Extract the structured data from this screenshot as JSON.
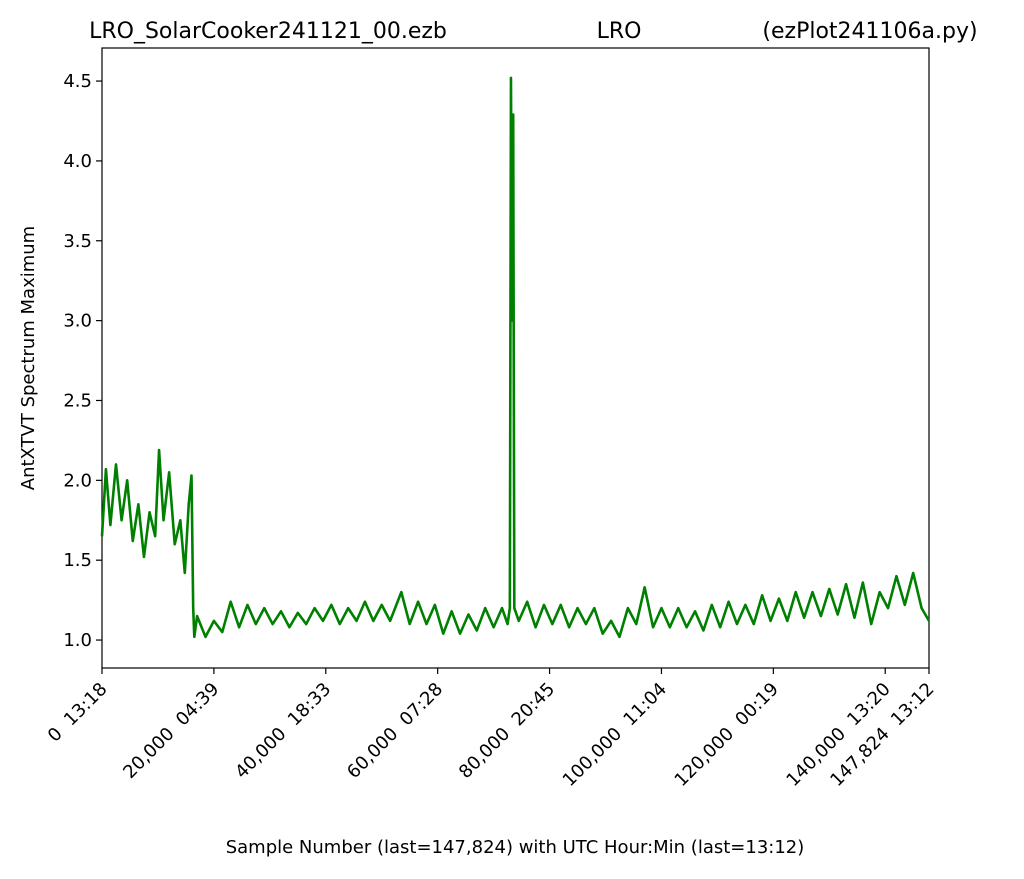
{
  "chart_data": {
    "type": "line",
    "title_left": "LRO_SolarCooker241121_00.ezb",
    "title_center": "LRO",
    "title_right": "(ezPlot241106a.py)",
    "xlabel": "Sample Number (last=147,824) with UTC Hour:Min (last=13:12)",
    "ylabel": "AntXTVT Spectrum Maximum",
    "xlim": [
      0,
      147824
    ],
    "ylim": [
      0.825,
      4.707
    ],
    "xticks": [
      {
        "value": 0,
        "label": "0  13:18"
      },
      {
        "value": 20000,
        "label": "20,000  04:39"
      },
      {
        "value": 40000,
        "label": "40,000  18:33"
      },
      {
        "value": 60000,
        "label": "60,000  07:28"
      },
      {
        "value": 80000,
        "label": "80,000  20:45"
      },
      {
        "value": 100000,
        "label": "100,000  11:04"
      },
      {
        "value": 120000,
        "label": "120,000  00:19"
      },
      {
        "value": 140000,
        "label": "140,000  13:20"
      },
      {
        "value": 147824,
        "label": "147,824  13:12"
      }
    ],
    "yticks": [
      {
        "value": 1,
        "label": "1.0"
      },
      1.5,
      {
        "value": 2,
        "label": "2.0"
      },
      2.5,
      {
        "value": 3,
        "label": "3.0"
      },
      3.5,
      {
        "value": 4,
        "label": "4.0"
      },
      4.5
    ],
    "series": [
      {
        "color": "#008000",
        "x": [
          0,
          700,
          1500,
          2500,
          3500,
          4500,
          5500,
          6500,
          7500,
          8500,
          9500,
          10200,
          11000,
          12000,
          13000,
          14000,
          14800,
          15500,
          16000,
          16300,
          16500,
          17000,
          18500,
          20000,
          21500,
          23000,
          24500,
          26000,
          27500,
          29000,
          30500,
          32000,
          33500,
          35000,
          36500,
          38000,
          39500,
          41000,
          42500,
          44000,
          45500,
          47000,
          48500,
          50000,
          51500,
          53500,
          55000,
          56500,
          58000,
          59500,
          61000,
          62500,
          64000,
          65500,
          67000,
          68500,
          70000,
          71500,
          72500,
          72900,
          73100,
          73300,
          73500,
          73700,
          74500,
          76000,
          77500,
          79000,
          80500,
          82000,
          83500,
          85000,
          86500,
          88000,
          89500,
          91000,
          92500,
          94000,
          95500,
          97000,
          98500,
          100000,
          101500,
          103000,
          104500,
          106000,
          107500,
          109000,
          110500,
          112000,
          113500,
          115000,
          116500,
          118000,
          119500,
          121000,
          122500,
          124000,
          125500,
          127000,
          128500,
          130000,
          131500,
          133000,
          134500,
          136000,
          137500,
          139000,
          140500,
          142000,
          143500,
          145000,
          146500,
          147824
        ],
        "values": [
          1.65,
          2.07,
          1.72,
          2.1,
          1.75,
          2.0,
          1.62,
          1.85,
          1.52,
          1.8,
          1.65,
          2.19,
          1.75,
          2.05,
          1.6,
          1.75,
          1.42,
          1.85,
          2.03,
          1.2,
          1.02,
          1.15,
          1.02,
          1.12,
          1.05,
          1.24,
          1.08,
          1.22,
          1.1,
          1.2,
          1.1,
          1.18,
          1.08,
          1.17,
          1.1,
          1.2,
          1.12,
          1.22,
          1.1,
          1.2,
          1.12,
          1.24,
          1.12,
          1.22,
          1.12,
          1.3,
          1.1,
          1.24,
          1.1,
          1.22,
          1.04,
          1.18,
          1.04,
          1.16,
          1.06,
          1.2,
          1.08,
          1.2,
          1.1,
          1.2,
          4.52,
          3.0,
          4.29,
          1.2,
          1.12,
          1.24,
          1.08,
          1.22,
          1.1,
          1.22,
          1.08,
          1.2,
          1.1,
          1.2,
          1.04,
          1.12,
          1.02,
          1.2,
          1.1,
          1.33,
          1.08,
          1.2,
          1.08,
          1.2,
          1.08,
          1.18,
          1.06,
          1.22,
          1.08,
          1.24,
          1.1,
          1.22,
          1.1,
          1.28,
          1.12,
          1.26,
          1.12,
          1.3,
          1.14,
          1.3,
          1.15,
          1.32,
          1.16,
          1.35,
          1.14,
          1.36,
          1.1,
          1.3,
          1.2,
          1.4,
          1.22,
          1.42,
          1.2,
          1.12
        ]
      }
    ]
  }
}
